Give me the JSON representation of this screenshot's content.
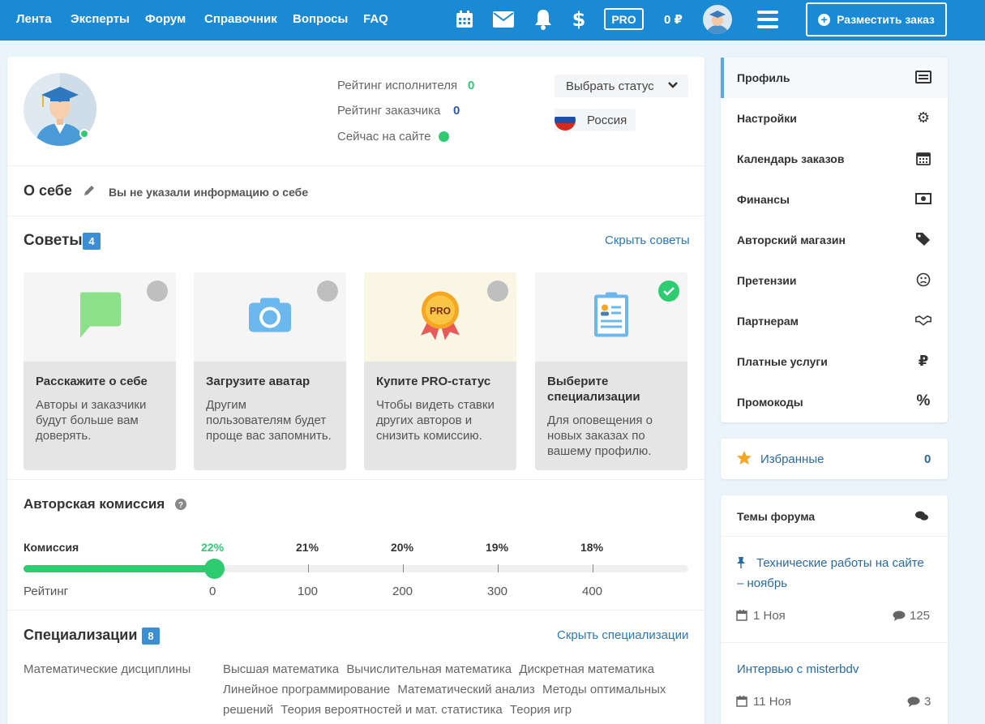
{
  "nav": {
    "items": [
      "Лента",
      "Эксперты",
      "Форум",
      "Справочник",
      "Вопросы",
      "FAQ"
    ]
  },
  "topbar": {
    "icons": [
      "calendar-icon",
      "mail-icon",
      "bell-icon",
      "dollar-icon"
    ],
    "pro_label": "PRO",
    "balance": "0 ₽",
    "order_button": "Разместить заказ"
  },
  "profile": {
    "stats": [
      {
        "label": "Рейтинг исполнителя",
        "value": "0",
        "color": "#2ecc71"
      },
      {
        "label": "Рейтинг заказчика",
        "value": "0",
        "color": "#2a5f9e"
      },
      {
        "label": "Сейчас на сайте",
        "value": ""
      }
    ],
    "status_select": "Выбрать статус",
    "country": "Россия"
  },
  "about": {
    "title": "О себе",
    "text": "Вы не указали информацию о себе"
  },
  "tips": {
    "title": "Советы",
    "count": "4",
    "hide_link": "Скрыть советы",
    "cards": [
      {
        "title": "Расскажите о себе",
        "text": [
          "Авторы и заказчики",
          "будут больше вам",
          "доверять."
        ]
      },
      {
        "title": "Загрузите аватар",
        "text": [
          "Другим",
          "пользователям будет",
          "проще вас запомнить."
        ]
      },
      {
        "title": "Купите PRO-статус",
        "text": [
          "Чтобы видеть ставки",
          "других авторов и",
          "снизить комиссию."
        ],
        "medal_label": "PRO"
      },
      {
        "title": [
          "Выберите",
          "специализации"
        ],
        "text": [
          "Для оповещения о",
          "новых заказах по",
          "вашему профилю."
        ]
      }
    ]
  },
  "commission": {
    "title": "Авторская комиссия",
    "row_commission": "Комиссия",
    "row_rating": "Рейтинг",
    "current_index": 0,
    "levels": [
      {
        "pct": "22%",
        "rating": "0"
      },
      {
        "pct": "21%",
        "rating": "100"
      },
      {
        "pct": "20%",
        "rating": "200"
      },
      {
        "pct": "19%",
        "rating": "300"
      },
      {
        "pct": "18%",
        "rating": "400"
      }
    ]
  },
  "specializations": {
    "title": "Специализации",
    "count": "8",
    "hide_link": "Скрыть специализации",
    "group": "Математические дисциплины",
    "items": [
      "Высшая математика",
      "Вычислительная математика",
      "Дискретная математика",
      "Линейное программирование",
      "Математический анализ",
      "Методы оптимальных решений",
      "Теория вероятностей и мат. статистика",
      "Теория игр"
    ]
  },
  "sidebar": {
    "items": [
      {
        "label": "Профиль",
        "icon": "id-card-icon"
      },
      {
        "label": "Настройки",
        "icon": "gear-icon"
      },
      {
        "label": "Календарь заказов",
        "icon": "calendar-icon"
      },
      {
        "label": "Финансы",
        "icon": "money-icon"
      },
      {
        "label": "Авторский магазин",
        "icon": "tags-icon"
      },
      {
        "label": "Претензии",
        "icon": "frown-icon"
      },
      {
        "label": "Партнерам",
        "icon": "handshake-icon"
      },
      {
        "label": "Платные услуги",
        "icon": "ruble-icon"
      },
      {
        "label": "Промокоды",
        "icon": "percent-icon"
      }
    ],
    "favorites": {
      "label": "Избранные",
      "count": "0"
    },
    "forum": {
      "title": "Темы форума",
      "threads": [
        {
          "title": [
            "Технические работы на сайте",
            "– ноябрь"
          ],
          "date": "1 Ноя",
          "comments": "125",
          "pinned": true
        },
        {
          "title": [
            "Интервью с misterbdv"
          ],
          "date": "11 Ноя",
          "comments": "3",
          "pinned": false
        }
      ]
    }
  }
}
